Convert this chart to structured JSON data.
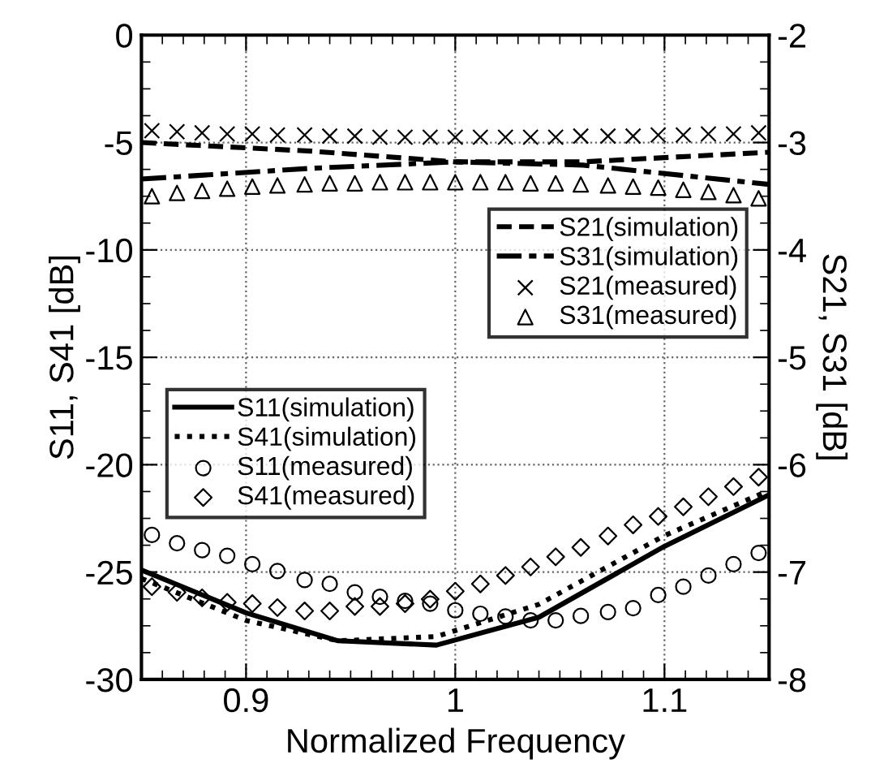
{
  "chart_data": {
    "type": "line",
    "xlabel": "Normalized Frequency",
    "ylabel": "S11, S41 [dB]",
    "y2label": "S21, S31 [dB]",
    "xlim": [
      0.85,
      1.15
    ],
    "xticks": [
      0.9,
      1,
      1.1
    ],
    "ylim": [
      -30,
      0
    ],
    "yticks": [
      -30,
      -25,
      -20,
      -15,
      -10,
      -5,
      0
    ],
    "y2lim": [
      -8,
      -2
    ],
    "y2ticks": [
      -8,
      -7,
      -6,
      -5,
      -4,
      -3,
      -2
    ],
    "grid": true,
    "legend": "right",
    "series": [
      {
        "name": "S21(simulation)",
        "axis": "y2",
        "color": "#000000",
        "line_style": "dashed",
        "marker": "none",
        "x": [
          0.85,
          0.931,
          1.0,
          1.061,
          1.15
        ],
        "values": [
          -3.0,
          -3.08,
          -3.18,
          -3.18,
          -3.09
        ]
      },
      {
        "name": "S31(simulation)",
        "axis": "y2",
        "color": "#000000",
        "line_style": "dashdot",
        "marker": "none",
        "x": [
          0.85,
          0.931,
          1.0,
          1.061,
          1.15
        ],
        "values": [
          -3.34,
          -3.24,
          -3.18,
          -3.21,
          -3.39
        ]
      },
      {
        "name": "S21(measured)",
        "axis": "y2",
        "type": "scatter",
        "color": "#000000",
        "marker": "cross",
        "x": [
          0.855,
          0.867,
          0.879,
          0.891,
          0.903,
          0.915,
          0.928,
          0.94,
          0.952,
          0.964,
          0.976,
          0.988,
          1.0,
          1.012,
          1.024,
          1.036,
          1.048,
          1.06,
          1.073,
          1.085,
          1.097,
          1.109,
          1.121,
          1.133,
          1.145
        ],
        "values": [
          -2.89,
          -2.9,
          -2.91,
          -2.92,
          -2.92,
          -2.93,
          -2.93,
          -2.94,
          -2.94,
          -2.95,
          -2.95,
          -2.95,
          -2.95,
          -2.95,
          -2.95,
          -2.95,
          -2.95,
          -2.94,
          -2.94,
          -2.94,
          -2.93,
          -2.93,
          -2.92,
          -2.92,
          -2.91
        ]
      },
      {
        "name": "S31(measured)",
        "axis": "y2",
        "type": "scatter",
        "color": "#000000",
        "marker": "triangle",
        "x": [
          0.855,
          0.867,
          0.879,
          0.891,
          0.903,
          0.915,
          0.928,
          0.94,
          0.952,
          0.964,
          0.976,
          0.988,
          1.0,
          1.012,
          1.024,
          1.036,
          1.048,
          1.06,
          1.073,
          1.085,
          1.097,
          1.109,
          1.121,
          1.133,
          1.145
        ],
        "values": [
          -3.5,
          -3.47,
          -3.45,
          -3.43,
          -3.41,
          -3.4,
          -3.39,
          -3.38,
          -3.38,
          -3.37,
          -3.37,
          -3.37,
          -3.37,
          -3.37,
          -3.37,
          -3.38,
          -3.38,
          -3.39,
          -3.4,
          -3.41,
          -3.42,
          -3.44,
          -3.46,
          -3.49,
          -3.52
        ]
      },
      {
        "name": "S11(simulation)",
        "color": "#000000",
        "line_style": "solid",
        "marker": "none",
        "x": [
          0.85,
          0.9,
          0.944,
          0.991,
          1.04,
          1.1,
          1.15
        ],
        "values": [
          -24.9,
          -26.9,
          -28.2,
          -28.4,
          -27.1,
          -23.8,
          -21.4
        ]
      },
      {
        "name": "S41(simulation)",
        "color": "#000000",
        "line_style": "dotted",
        "marker": "none",
        "x": [
          0.85,
          0.9,
          0.944,
          0.991,
          1.04,
          1.1,
          1.15
        ],
        "values": [
          -25.3,
          -27.25,
          -28.2,
          -28.0,
          -26.5,
          -23.3,
          -21.2
        ]
      },
      {
        "name": "S11(measured)",
        "type": "scatter",
        "color": "#000000",
        "marker": "circle",
        "x": [
          0.855,
          0.867,
          0.879,
          0.891,
          0.903,
          0.915,
          0.928,
          0.94,
          0.952,
          0.964,
          0.976,
          0.988,
          1.0,
          1.012,
          1.024,
          1.036,
          1.048,
          1.06,
          1.073,
          1.085,
          1.097,
          1.109,
          1.121,
          1.133,
          1.145
        ],
        "values": [
          -23.27,
          -23.66,
          -23.98,
          -24.24,
          -24.63,
          -24.95,
          -25.37,
          -25.55,
          -25.94,
          -26.15,
          -26.34,
          -26.47,
          -26.78,
          -26.94,
          -27.07,
          -27.25,
          -27.25,
          -27.04,
          -26.86,
          -26.68,
          -26.07,
          -25.68,
          -25.16,
          -24.63,
          -24.11
        ]
      },
      {
        "name": "S41(measured)",
        "type": "scatter",
        "color": "#000000",
        "marker": "diamond",
        "x": [
          0.855,
          0.867,
          0.879,
          0.891,
          0.903,
          0.915,
          0.928,
          0.94,
          0.952,
          0.964,
          0.976,
          0.988,
          1.0,
          1.012,
          1.024,
          1.036,
          1.048,
          1.06,
          1.073,
          1.085,
          1.097,
          1.109,
          1.121,
          1.133,
          1.145
        ],
        "values": [
          -25.68,
          -25.94,
          -26.2,
          -26.41,
          -26.47,
          -26.65,
          -26.81,
          -26.81,
          -26.6,
          -26.6,
          -26.47,
          -26.26,
          -25.89,
          -25.55,
          -25.16,
          -24.76,
          -24.29,
          -23.85,
          -23.32,
          -22.8,
          -22.41,
          -21.96,
          -21.49,
          -21.02,
          -20.58
        ]
      }
    ]
  }
}
